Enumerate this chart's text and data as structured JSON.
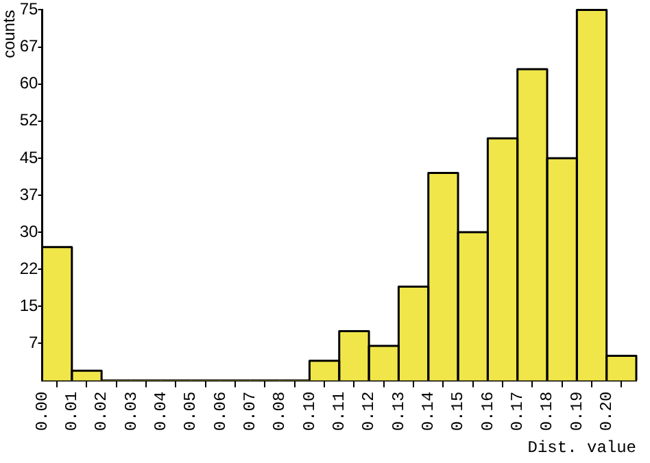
{
  "chart_data": {
    "type": "histogram",
    "xlabel": "Dist. value",
    "ylabel": "counts",
    "bins": [
      0,
      0.0106,
      0.0212,
      0.0318,
      0.0424,
      0.053,
      0.0636,
      0.0742,
      0.0848,
      0.0954,
      0.106,
      0.1166,
      0.1272,
      0.1378,
      0.1484,
      0.159,
      0.1696,
      0.1802,
      0.1908,
      0.2014,
      0.212
    ],
    "values": [
      27,
      2,
      0,
      0,
      0,
      0,
      0,
      0,
      0,
      4,
      10,
      7,
      19,
      42,
      30,
      49,
      63,
      45,
      75,
      5
    ],
    "color": "#f0e64a",
    "xlim": [
      0,
      0.212
    ],
    "xticks": [
      {
        "value": 0,
        "label": "0.00"
      },
      {
        "value": 0.0106,
        "label": "0.01"
      },
      {
        "value": 0.0212,
        "label": "0.02"
      },
      {
        "value": 0.0318,
        "label": "0.03"
      },
      {
        "value": 0.0424,
        "label": "0.04"
      },
      {
        "value": 0.053,
        "label": "0.05"
      },
      {
        "value": 0.0636,
        "label": "0.06"
      },
      {
        "value": 0.0742,
        "label": "0.07"
      },
      {
        "value": 0.0848,
        "label": "0.08"
      },
      {
        "value": 0.0954,
        "label": "0.10"
      },
      {
        "value": 0.106,
        "label": "0.11"
      },
      {
        "value": 0.1166,
        "label": "0.12"
      },
      {
        "value": 0.1272,
        "label": "0.13"
      },
      {
        "value": 0.1378,
        "label": "0.14"
      },
      {
        "value": 0.1484,
        "label": "0.15"
      },
      {
        "value": 0.159,
        "label": "0.16"
      },
      {
        "value": 0.1696,
        "label": "0.17"
      },
      {
        "value": 0.1802,
        "label": "0.18"
      },
      {
        "value": 0.1908,
        "label": "0.19"
      },
      {
        "value": 0.2014,
        "label": "0.20"
      }
    ],
    "ylim": [
      0,
      75
    ],
    "yticks": [
      {
        "value": 7.5,
        "label": "7"
      },
      15,
      {
        "value": 22.5,
        "label": "22"
      },
      30,
      {
        "value": 37.5,
        "label": "37"
      },
      45,
      {
        "value": 52.5,
        "label": "52"
      },
      60,
      {
        "value": 67.5,
        "label": "67"
      },
      75
    ],
    "grid": false,
    "legend": false
  }
}
